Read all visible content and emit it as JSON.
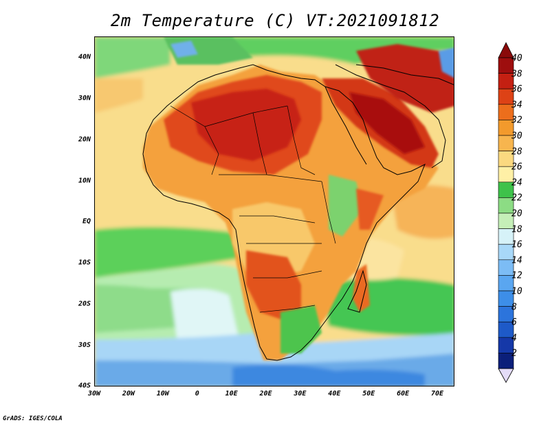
{
  "title": "2m Temperature (C) VT:2021091812",
  "credit": "GrADS: IGES/COLA",
  "map": {
    "lon_range": [
      -30,
      75
    ],
    "lat_range": [
      -40,
      45
    ],
    "lat_ticks": [
      {
        "value": 40,
        "label": "40N"
      },
      {
        "value": 30,
        "label": "30N"
      },
      {
        "value": 20,
        "label": "20N"
      },
      {
        "value": 10,
        "label": "10N"
      },
      {
        "value": 0,
        "label": "EQ"
      },
      {
        "value": -10,
        "label": "10S"
      },
      {
        "value": -20,
        "label": "20S"
      },
      {
        "value": -30,
        "label": "30S"
      },
      {
        "value": -40,
        "label": "40S"
      }
    ],
    "lon_ticks": [
      {
        "value": -30,
        "label": "30W"
      },
      {
        "value": -20,
        "label": "20W"
      },
      {
        "value": -10,
        "label": "10W"
      },
      {
        "value": 0,
        "label": "0"
      },
      {
        "value": 10,
        "label": "10E"
      },
      {
        "value": 20,
        "label": "20E"
      },
      {
        "value": 30,
        "label": "30E"
      },
      {
        "value": 40,
        "label": "40E"
      },
      {
        "value": 50,
        "label": "50E"
      },
      {
        "value": 60,
        "label": "60E"
      },
      {
        "value": 70,
        "label": "70E"
      }
    ]
  },
  "colorbar": {
    "labels": [
      "2",
      "4",
      "6",
      "8",
      "10",
      "12",
      "14",
      "16",
      "18",
      "20",
      "22",
      "24",
      "26",
      "28",
      "30",
      "32",
      "34",
      "36",
      "38",
      "40"
    ],
    "colors": [
      "#0b1f7a",
      "#1538a8",
      "#1e5ac8",
      "#2c74dc",
      "#3d8ee8",
      "#5aa6f0",
      "#7cbcf5",
      "#a8d8f8",
      "#d6f2f8",
      "#c5efb8",
      "#8cdc84",
      "#3ec24a",
      "#fff0a6",
      "#fbd980",
      "#f7b54e",
      "#f29a2c",
      "#ec6e1c",
      "#dd4216",
      "#c42012",
      "#9e0e0e"
    ],
    "low_color": "#e4dcf8",
    "high_color": "#8a0a0a"
  }
}
